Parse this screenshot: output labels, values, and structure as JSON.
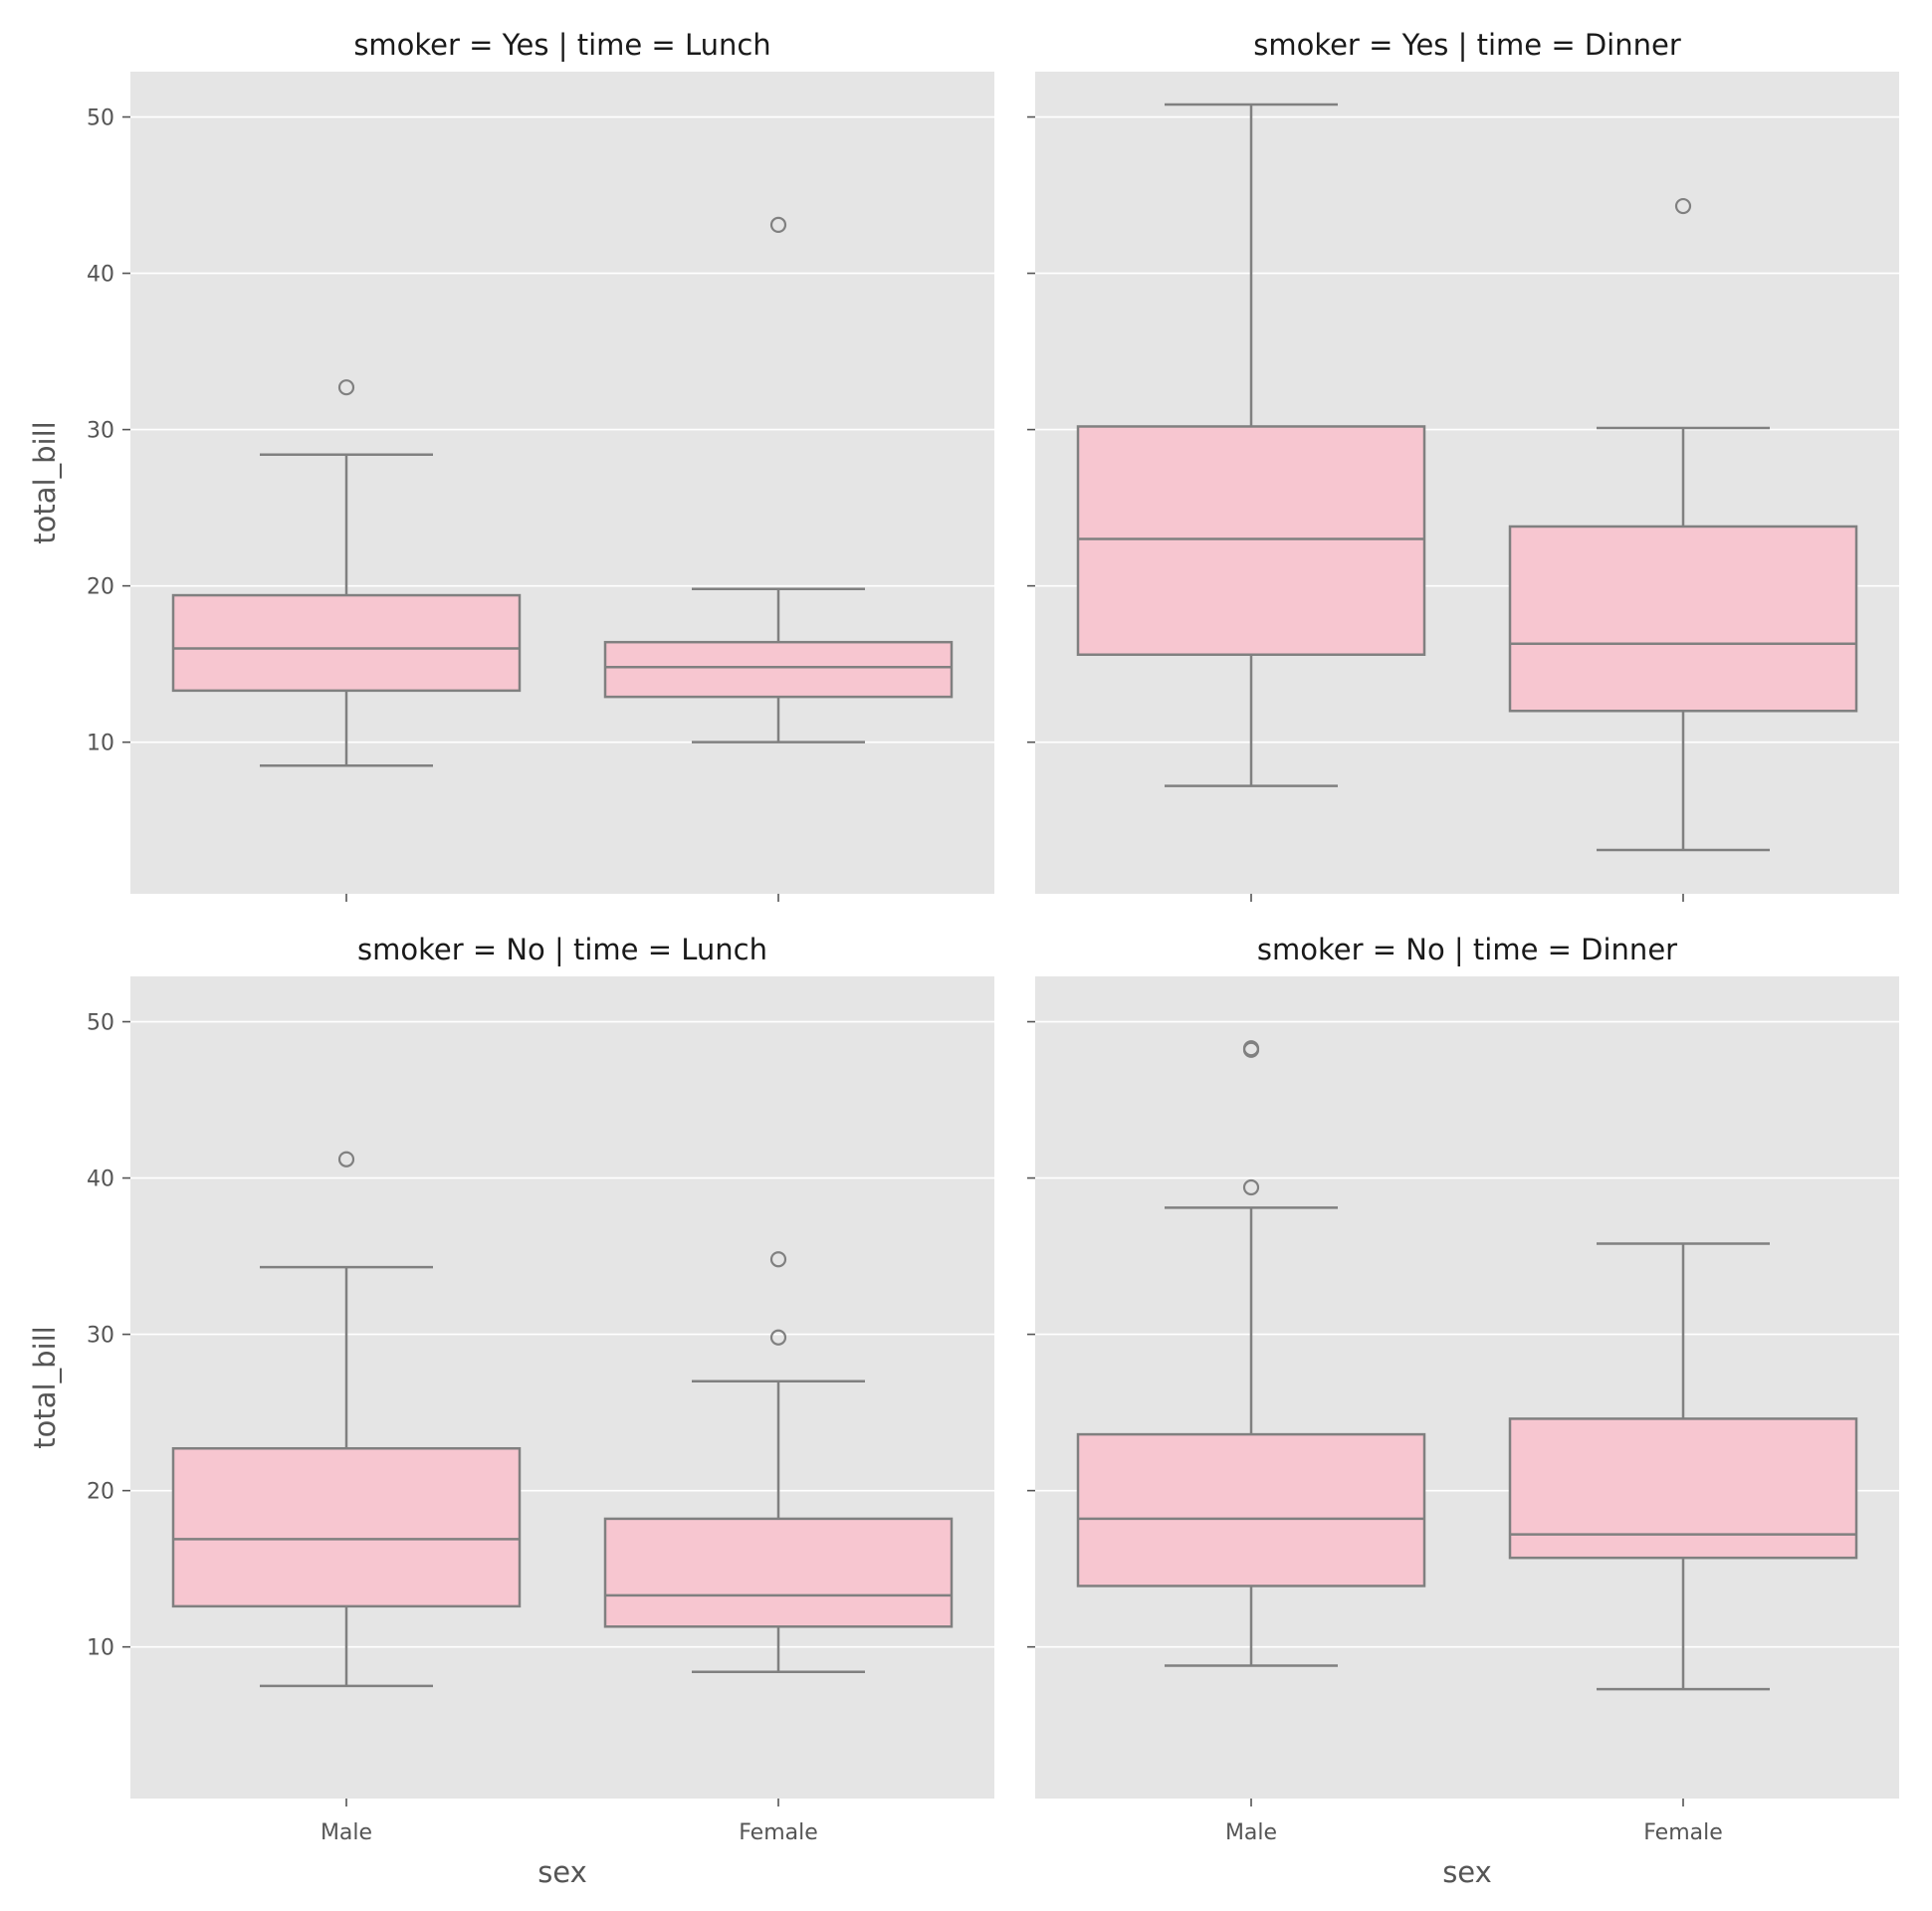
{
  "chart_data": {
    "type": "boxplot",
    "box_color": "#f7c6d0",
    "line_color": "#808080",
    "panel_background": "#e5e5e5",
    "grid": true,
    "categories": [
      "Male",
      "Female"
    ],
    "xlabel": "sex",
    "ylabel": "total_bill",
    "yticks": [
      10,
      20,
      30,
      40,
      50
    ],
    "ylim": [
      0.3,
      52.9
    ],
    "panels": [
      {
        "title": "smoker = Yes | time = Lunch",
        "boxes": [
          {
            "category": "Male",
            "whisker_low": 8.5,
            "q1": 13.3,
            "median": 16.0,
            "q3": 19.4,
            "whisker_high": 28.4,
            "outliers": [
              32.7
            ]
          },
          {
            "category": "Female",
            "whisker_low": 10.0,
            "q1": 12.9,
            "median": 14.8,
            "q3": 16.4,
            "whisker_high": 19.8,
            "outliers": [
              43.1
            ]
          }
        ]
      },
      {
        "title": "smoker = Yes | time = Dinner",
        "boxes": [
          {
            "category": "Male",
            "whisker_low": 7.2,
            "q1": 15.6,
            "median": 23.0,
            "q3": 30.2,
            "whisker_high": 50.8,
            "outliers": []
          },
          {
            "category": "Female",
            "whisker_low": 3.1,
            "q1": 12.0,
            "median": 16.3,
            "q3": 23.8,
            "whisker_high": 30.1,
            "outliers": [
              44.3
            ]
          }
        ]
      },
      {
        "title": "smoker = No | time = Lunch",
        "boxes": [
          {
            "category": "Male",
            "whisker_low": 7.5,
            "q1": 12.6,
            "median": 16.9,
            "q3": 22.7,
            "whisker_high": 34.3,
            "outliers": [
              41.2
            ]
          },
          {
            "category": "Female",
            "whisker_low": 8.4,
            "q1": 11.3,
            "median": 13.3,
            "q3": 18.2,
            "whisker_high": 27.0,
            "outliers": [
              29.8,
              34.8
            ]
          }
        ]
      },
      {
        "title": "smoker = No | time = Dinner",
        "boxes": [
          {
            "category": "Male",
            "whisker_low": 8.8,
            "q1": 13.9,
            "median": 18.2,
            "q3": 23.6,
            "whisker_high": 38.1,
            "outliers": [
              39.4,
              48.2,
              48.3
            ]
          },
          {
            "category": "Female",
            "whisker_low": 7.3,
            "q1": 15.7,
            "median": 17.2,
            "q3": 24.6,
            "whisker_high": 35.8,
            "outliers": []
          }
        ]
      }
    ]
  }
}
